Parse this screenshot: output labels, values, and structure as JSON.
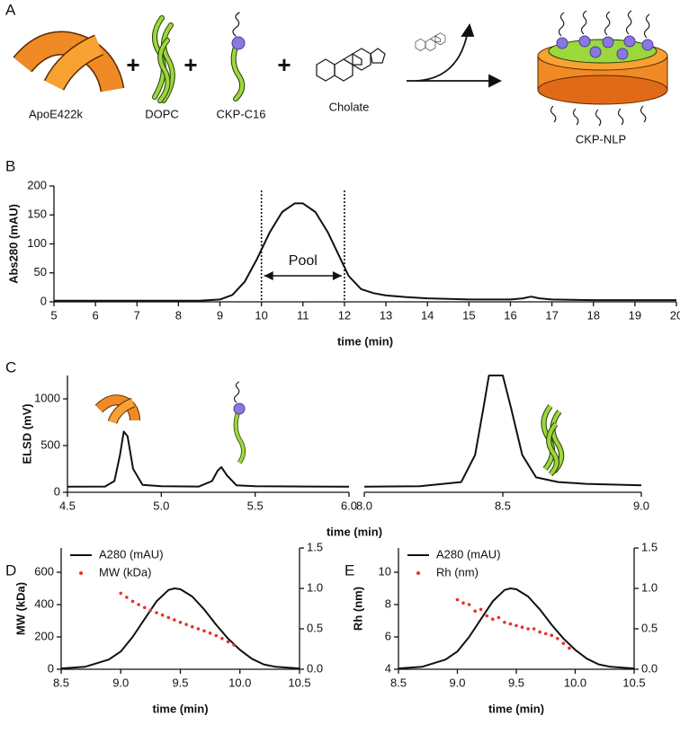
{
  "scheme": {
    "panel": "A",
    "labels": [
      "ApoE422k",
      "DOPC",
      "CKP-C16",
      "Cholate",
      "CKP-NLP"
    ]
  },
  "chart_data": [
    {
      "type": "line",
      "panel": "B",
      "xlabel": "time (min)",
      "ylabel": "Abs280 (mAU)",
      "x": [
        5,
        6,
        7,
        8,
        8.5,
        9,
        9.3,
        9.6,
        9.9,
        10.2,
        10.5,
        10.8,
        11,
        11.3,
        11.6,
        11.9,
        12.1,
        12.4,
        12.7,
        13,
        13.5,
        14,
        15,
        16,
        16.3,
        16.5,
        16.7,
        17,
        18,
        19,
        20
      ],
      "series": [
        {
          "color": "#111111",
          "values": [
            2,
            2,
            2,
            2,
            2,
            4,
            12,
            35,
            75,
            120,
            155,
            170,
            170,
            155,
            120,
            75,
            45,
            22,
            15,
            11,
            8,
            6,
            4,
            4,
            6,
            9,
            6,
            4,
            3,
            3,
            3
          ]
        }
      ],
      "xlim": [
        5,
        20
      ],
      "xticks": [
        5,
        6,
        7,
        8,
        9,
        10,
        11,
        12,
        13,
        14,
        15,
        16,
        17,
        18,
        19,
        20
      ],
      "ylim": [
        0,
        200
      ],
      "yticks": [
        0,
        50,
        100,
        150,
        200
      ],
      "annotation": {
        "text": "Pool",
        "range": [
          10,
          12
        ]
      }
    },
    {
      "type": "line",
      "panel": "C",
      "xlabel": "time (min)",
      "ylabel": "ELSD (mV)",
      "color": "#111111",
      "ylim": [
        0,
        1250
      ],
      "yticks": [
        0,
        500,
        1000
      ],
      "segments": [
        {
          "xlim": [
            4.5,
            6
          ],
          "xticks": [
            4.5,
            {
              "value": 5,
              "label": "5.0"
            },
            5.5,
            {
              "value": 6,
              "label": "6.0"
            }
          ],
          "x": [
            4.5,
            4.7,
            4.75,
            4.78,
            4.8,
            4.82,
            4.85,
            4.9,
            5.0,
            5.2,
            5.27,
            5.3,
            5.32,
            5.35,
            5.4,
            5.5,
            5.8,
            6.0
          ],
          "values": [
            60,
            62,
            120,
            400,
            650,
            600,
            250,
            80,
            65,
            62,
            120,
            230,
            270,
            180,
            75,
            65,
            62,
            60
          ]
        },
        {
          "xlim": [
            8,
            9
          ],
          "xticks": [
            {
              "value": 8,
              "label": "8.0"
            },
            8.5,
            {
              "value": 9,
              "label": "9.0"
            }
          ],
          "x": [
            8.0,
            8.2,
            8.35,
            8.4,
            8.43,
            8.45,
            8.5,
            8.53,
            8.57,
            8.62,
            8.7,
            8.8,
            9.0
          ],
          "values": [
            60,
            65,
            110,
            400,
            900,
            1250,
            1250,
            900,
            400,
            160,
            110,
            90,
            75
          ]
        }
      ]
    },
    {
      "type": "combo",
      "panel": "D",
      "xlabel": "time (min)",
      "ylabel": "MW (kDa)",
      "xlim": [
        8.5,
        10.5
      ],
      "xticks": [
        8.5,
        {
          "value": 9,
          "label": "9.0"
        },
        9.5,
        {
          "value": 10,
          "label": "10.0"
        },
        10.5
      ],
      "ylim": [
        0,
        750
      ],
      "yticks": [
        0,
        200,
        400,
        600
      ],
      "y2lim": [
        0,
        1.5
      ],
      "y2ticks": [
        {
          "value": 0,
          "label": "0.0"
        },
        0.5,
        {
          "value": 1,
          "label": "1.0"
        },
        1.5
      ],
      "series": [
        {
          "name": "A280 (mAU)",
          "color": "#111111",
          "mode": "lines",
          "axis": "y2",
          "x": [
            8.5,
            8.7,
            8.9,
            9.0,
            9.1,
            9.2,
            9.3,
            9.4,
            9.45,
            9.5,
            9.6,
            9.7,
            9.8,
            9.9,
            10.0,
            10.1,
            10.2,
            10.3,
            10.5
          ],
          "values": [
            0.01,
            0.03,
            0.12,
            0.22,
            0.4,
            0.62,
            0.84,
            0.98,
            1.0,
            0.99,
            0.9,
            0.74,
            0.55,
            0.38,
            0.24,
            0.13,
            0.06,
            0.03,
            0.01
          ]
        },
        {
          "name": "MW (kDa)",
          "color": "#e8312a",
          "mode": "markers",
          "x": [
            9.0,
            9.05,
            9.1,
            9.15,
            9.2,
            9.25,
            9.3,
            9.35,
            9.4,
            9.45,
            9.5,
            9.55,
            9.6,
            9.65,
            9.7,
            9.75,
            9.8,
            9.85,
            9.9,
            9.95
          ],
          "values": [
            470,
            445,
            420,
            400,
            382,
            365,
            350,
            335,
            320,
            305,
            290,
            277,
            263,
            250,
            237,
            223,
            208,
            190,
            170,
            150
          ]
        }
      ]
    },
    {
      "type": "combo",
      "panel": "E",
      "xlabel": "time (min)",
      "ylabel": "Rh (nm)",
      "xlim": [
        8.5,
        10.5
      ],
      "xticks": [
        8.5,
        {
          "value": 9,
          "label": "9.0"
        },
        9.5,
        {
          "value": 10,
          "label": "10.0"
        },
        10.5
      ],
      "ylim": [
        4,
        11.5
      ],
      "yticks": [
        4,
        6,
        8,
        10
      ],
      "y2lim": [
        0,
        1.5
      ],
      "y2ticks": [
        {
          "value": 0,
          "label": "0.0"
        },
        0.5,
        {
          "value": 1,
          "label": "1.0"
        },
        1.5
      ],
      "series": [
        {
          "name": "A280 (mAU)",
          "color": "#111111",
          "mode": "lines",
          "axis": "y2",
          "x": [
            8.5,
            8.7,
            8.9,
            9.0,
            9.1,
            9.2,
            9.3,
            9.4,
            9.45,
            9.5,
            9.6,
            9.7,
            9.8,
            9.9,
            10.0,
            10.1,
            10.2,
            10.3,
            10.5
          ],
          "values": [
            0.01,
            0.03,
            0.12,
            0.22,
            0.4,
            0.62,
            0.84,
            0.98,
            1.0,
            0.99,
            0.9,
            0.74,
            0.55,
            0.38,
            0.24,
            0.13,
            0.06,
            0.03,
            0.01
          ]
        },
        {
          "name": "Rh (nm)",
          "color": "#e8312a",
          "mode": "markers",
          "x": [
            9.0,
            9.05,
            9.1,
            9.15,
            9.2,
            9.25,
            9.3,
            9.35,
            9.4,
            9.45,
            9.5,
            9.55,
            9.6,
            9.65,
            9.7,
            9.75,
            9.8,
            9.85,
            9.9,
            9.95
          ],
          "values": [
            8.3,
            8.1,
            8.0,
            7.6,
            7.7,
            7.3,
            7.1,
            7.2,
            6.9,
            6.8,
            6.7,
            6.6,
            6.5,
            6.5,
            6.3,
            6.2,
            6.1,
            5.9,
            5.6,
            5.3
          ]
        }
      ]
    }
  ]
}
